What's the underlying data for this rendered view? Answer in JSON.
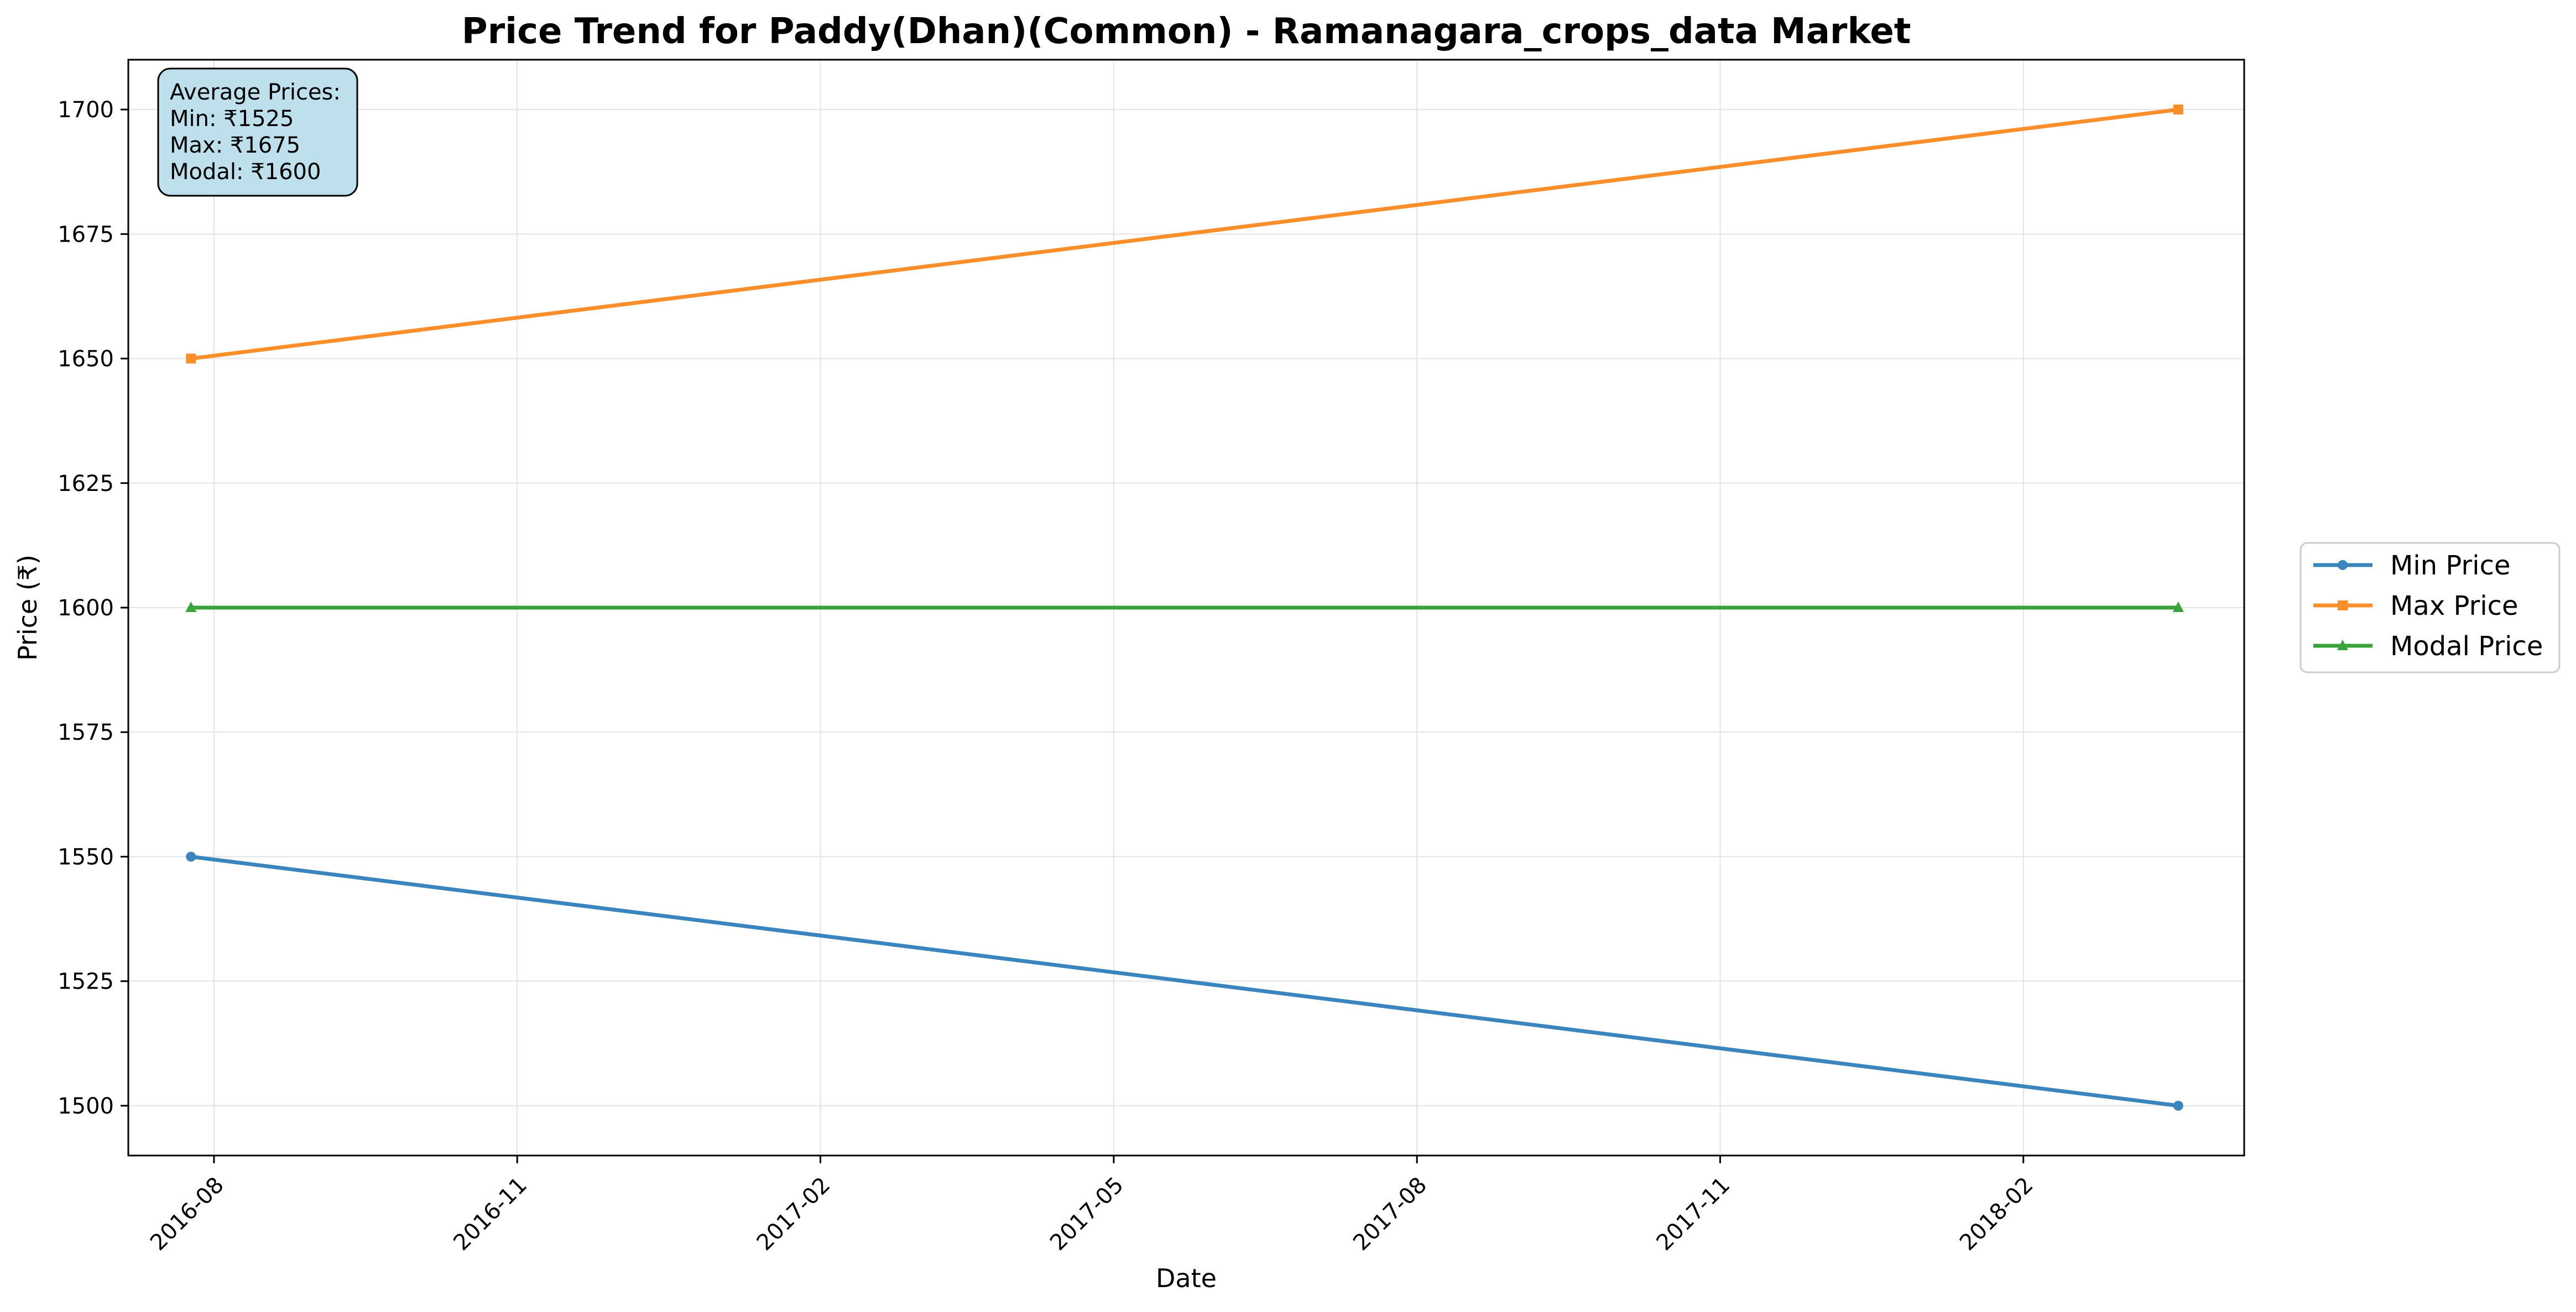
{
  "chart_data": {
    "type": "line",
    "title": "Price Trend for Paddy(Dhan)(Common) - Ramanagara_crops_data Market",
    "xlabel": "Date",
    "ylabel": "Price (₹)",
    "x": [
      "2016-07-25",
      "2018-03-20"
    ],
    "x_tick_labels": [
      "2016-08",
      "2016-11",
      "2017-02",
      "2017-05",
      "2017-08",
      "2017-11",
      "2018-02"
    ],
    "y_tick_labels": [
      "1500",
      "1525",
      "1550",
      "1575",
      "1600",
      "1625",
      "1650",
      "1675",
      "1700"
    ],
    "ylim": [
      1490,
      1710
    ],
    "xlim": [
      "2016-07-06",
      "2018-04-09"
    ],
    "grid": true,
    "legend_position": "right",
    "series": [
      {
        "name": "Min Price",
        "values": [
          1550,
          1500
        ],
        "color": "#3a85bd",
        "marker": "circle"
      },
      {
        "name": "Max Price",
        "values": [
          1650,
          1700
        ],
        "color": "#f98f2b",
        "marker": "square"
      },
      {
        "name": "Modal Price",
        "values": [
          1600,
          1600
        ],
        "color": "#3ba33b",
        "marker": "triangle"
      }
    ],
    "annotation": {
      "lines": [
        "Average Prices:",
        "Min: ₹1525",
        "Max: ₹1675",
        "Modal: ₹1600"
      ],
      "background": "#bde0ec"
    }
  }
}
